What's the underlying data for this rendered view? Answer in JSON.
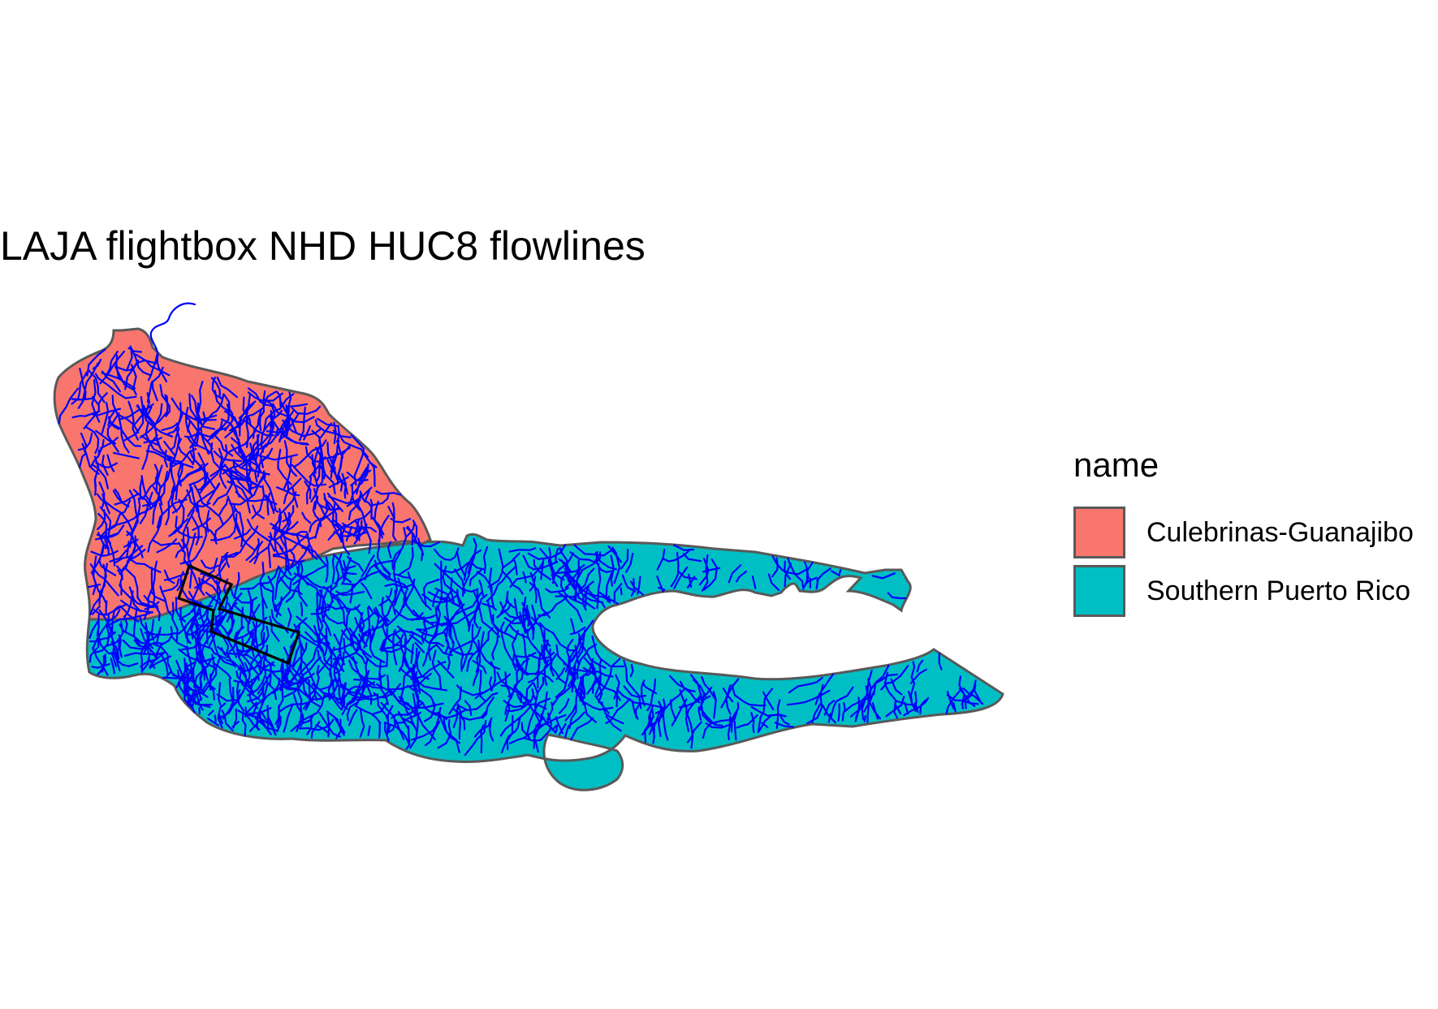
{
  "map": {
    "title": "LAJA flightbox NHD HUC8 flowlines",
    "flowline_color": "#0000ff",
    "boundary_color": "#595959",
    "flightbox_color": "#000000",
    "legend": {
      "title": "name",
      "items": [
        {
          "label": "Culebrinas-Guanajibo",
          "color": "#f8766d"
        },
        {
          "label": "Southern Puerto Rico",
          "color": "#00bfc4"
        }
      ]
    }
  }
}
